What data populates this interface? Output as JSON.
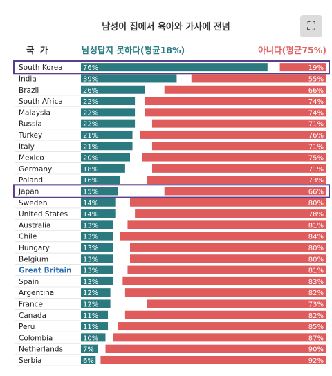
{
  "title": "남성이 집에서 육아와 가사에 전념",
  "headers": {
    "country": "국 가",
    "yes": "남성답지 못하다(평균18%)",
    "no": "아니다(평균75%)"
  },
  "colors": {
    "yes": "#2b7a80",
    "no": "#e05c5c",
    "highlight": "#5b3f8c",
    "emphasis": "#2a6fb0"
  },
  "icons": {
    "expand": "expand-icon"
  },
  "chart_data": {
    "type": "bar",
    "categories": [
      "South Korea",
      "India",
      "Brazil",
      "South Africa",
      "Malaysia",
      "Russia",
      "Turkey",
      "Italy",
      "Mexico",
      "Germany",
      "Poland",
      "Japan",
      "Sweden",
      "United States",
      "Australia",
      "Chile",
      "Hungary",
      "Belgium",
      "Great Britain",
      "Spain",
      "Argentina",
      "France",
      "Canada",
      "Peru",
      "Colombia",
      "Netherlands",
      "Serbia"
    ],
    "series": [
      {
        "name": "남성답지 못하다(평균18%)",
        "values": [
          76,
          39,
          26,
          22,
          22,
          22,
          21,
          21,
          20,
          18,
          16,
          15,
          14,
          14,
          13,
          13,
          13,
          13,
          13,
          13,
          12,
          12,
          11,
          11,
          10,
          7,
          6
        ]
      },
      {
        "name": "아니다(평균75%)",
        "values": [
          19,
          55,
          66,
          74,
          74,
          71,
          76,
          71,
          75,
          71,
          73,
          66,
          80,
          78,
          81,
          84,
          80,
          80,
          81,
          83,
          82,
          73,
          82,
          85,
          87,
          90,
          92
        ]
      }
    ],
    "highlighted": [
      "South Korea",
      "Japan"
    ],
    "emphasized": [
      "Great Britain"
    ],
    "ylim": [
      0,
      100
    ]
  }
}
